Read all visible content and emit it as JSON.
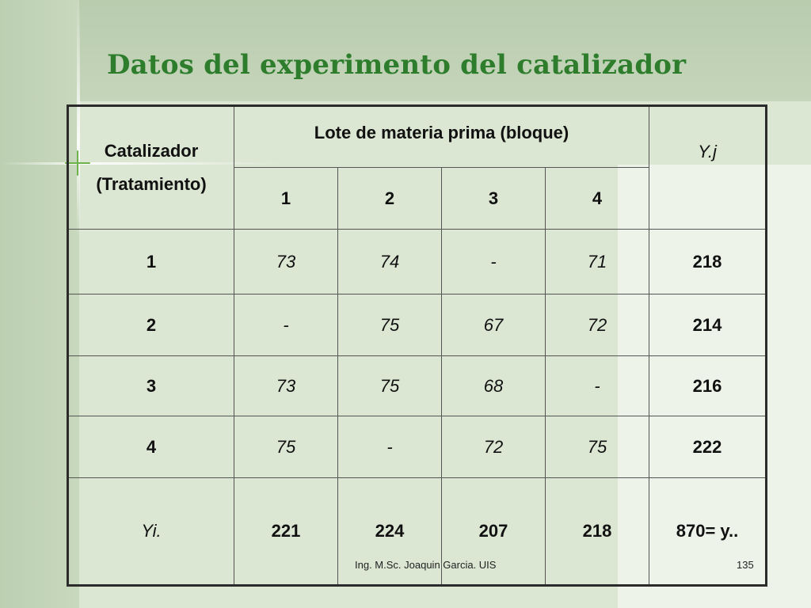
{
  "slide": {
    "title": "Datos del experimento del catalizador",
    "footer": "Ing. M.Sc. Joaquin Garcia.   UIS",
    "page_number": "135"
  },
  "table": {
    "header_treatment_line1": "Catalizador",
    "header_treatment_line2": "(Tratamiento)",
    "header_block": "Lote de materia prima  (bloque)",
    "header_row_total": "Y.j",
    "block_labels": [
      "1",
      "2",
      "3",
      "4"
    ],
    "rows": [
      {
        "treatment": "1",
        "values": [
          "73",
          "74",
          "-",
          "71"
        ],
        "total": "218"
      },
      {
        "treatment": "2",
        "values": [
          "-",
          "75",
          "67",
          "72"
        ],
        "total": "214"
      },
      {
        "treatment": "3",
        "values": [
          "73",
          "75",
          "68",
          "-"
        ],
        "total": "216"
      },
      {
        "treatment": "4",
        "values": [
          "75",
          "-",
          "72",
          "75"
        ],
        "total": "222"
      }
    ],
    "column_totals_label": "Yi.",
    "column_totals": [
      "221",
      "224",
      "207",
      "218"
    ],
    "grand_total": "870= y.."
  }
}
